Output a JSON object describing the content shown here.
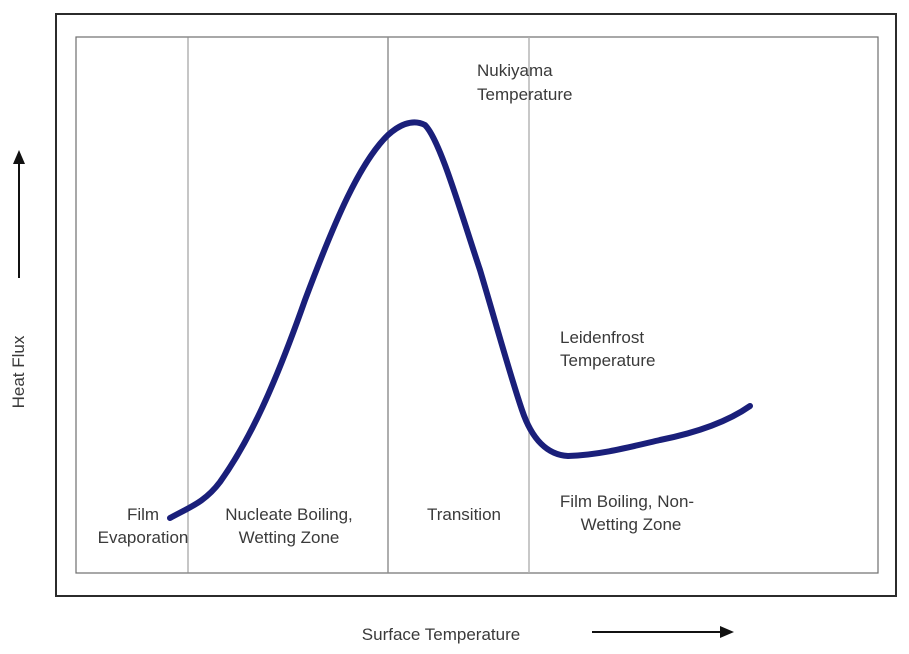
{
  "axes": {
    "y_label": "Heat Flux",
    "x_label": "Surface Temperature"
  },
  "annotations": {
    "nukiyama": [
      "Nukiyama",
      "Temperature"
    ],
    "leidenfrost": [
      "Leidenfrost",
      "Temperature"
    ]
  },
  "regions": {
    "film_evaporation": [
      "Film",
      "Evaporation"
    ],
    "nucleate_boiling": [
      "Nucleate Boiling,",
      "Wetting Zone"
    ],
    "transition": [
      "Transition"
    ],
    "film_boiling": [
      "Film Boiling, Non-",
      "Wetting Zone"
    ]
  },
  "colors": {
    "curve": "#1a1f7a",
    "frame": "#2b2b2b",
    "divider": "#8c8c8c",
    "text": "#3a3a3a"
  }
}
